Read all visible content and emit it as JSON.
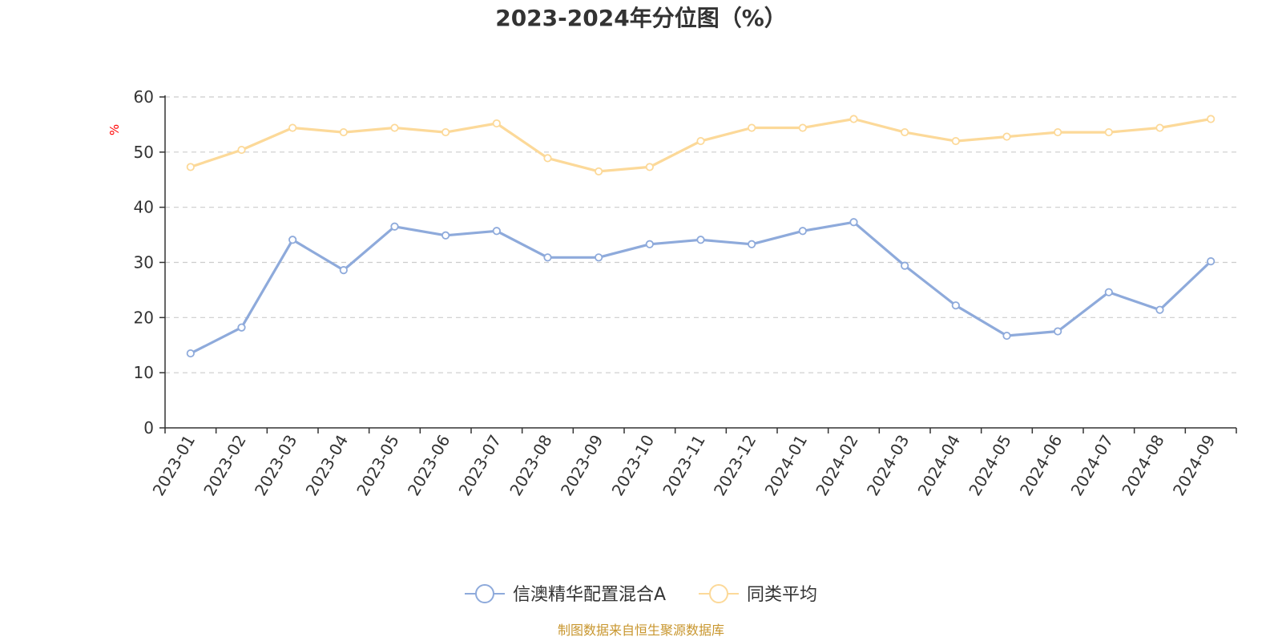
{
  "chart_data": {
    "type": "line",
    "title": "2023-2024年分位图（%）",
    "ylabel": "%",
    "ylim": [
      0,
      60
    ],
    "yticks": [
      "0",
      "10",
      "20",
      "30",
      "40",
      "50",
      "60"
    ],
    "grid": true,
    "legend_position": "bottom",
    "categories": [
      "2023-01",
      "2023-02",
      "2023-03",
      "2023-04",
      "2023-05",
      "2023-06",
      "2023-07",
      "2023-08",
      "2023-09",
      "2023-10",
      "2023-11",
      "2023-12",
      "2024-01",
      "2024-02",
      "2024-03",
      "2024-04",
      "2024-05",
      "2024-06",
      "2024-07",
      "2024-08",
      "2024-09"
    ],
    "series": [
      {
        "name": "信澳精华配置混合A",
        "color": "#8eaadb",
        "values": [
          13.5,
          18.2,
          34.1,
          28.6,
          36.5,
          34.9,
          35.7,
          30.9,
          30.9,
          33.3,
          34.1,
          33.3,
          35.7,
          37.3,
          29.4,
          22.2,
          16.7,
          17.5,
          24.6,
          21.4,
          30.2
        ]
      },
      {
        "name": "同类平均",
        "color": "#fcd999",
        "values": [
          47.3,
          50.4,
          54.4,
          53.6,
          54.4,
          53.6,
          55.2,
          48.9,
          46.5,
          47.3,
          52.0,
          54.4,
          54.4,
          56.0,
          53.6,
          52.0,
          52.8,
          53.6,
          53.6,
          54.4,
          56.0
        ]
      }
    ]
  },
  "source": "制图数据来自恒生聚源数据库",
  "colors": {
    "unit_label": "#ff0000",
    "source_text": "#c8962e",
    "axis": "#333333",
    "grid": "#cccccc"
  }
}
